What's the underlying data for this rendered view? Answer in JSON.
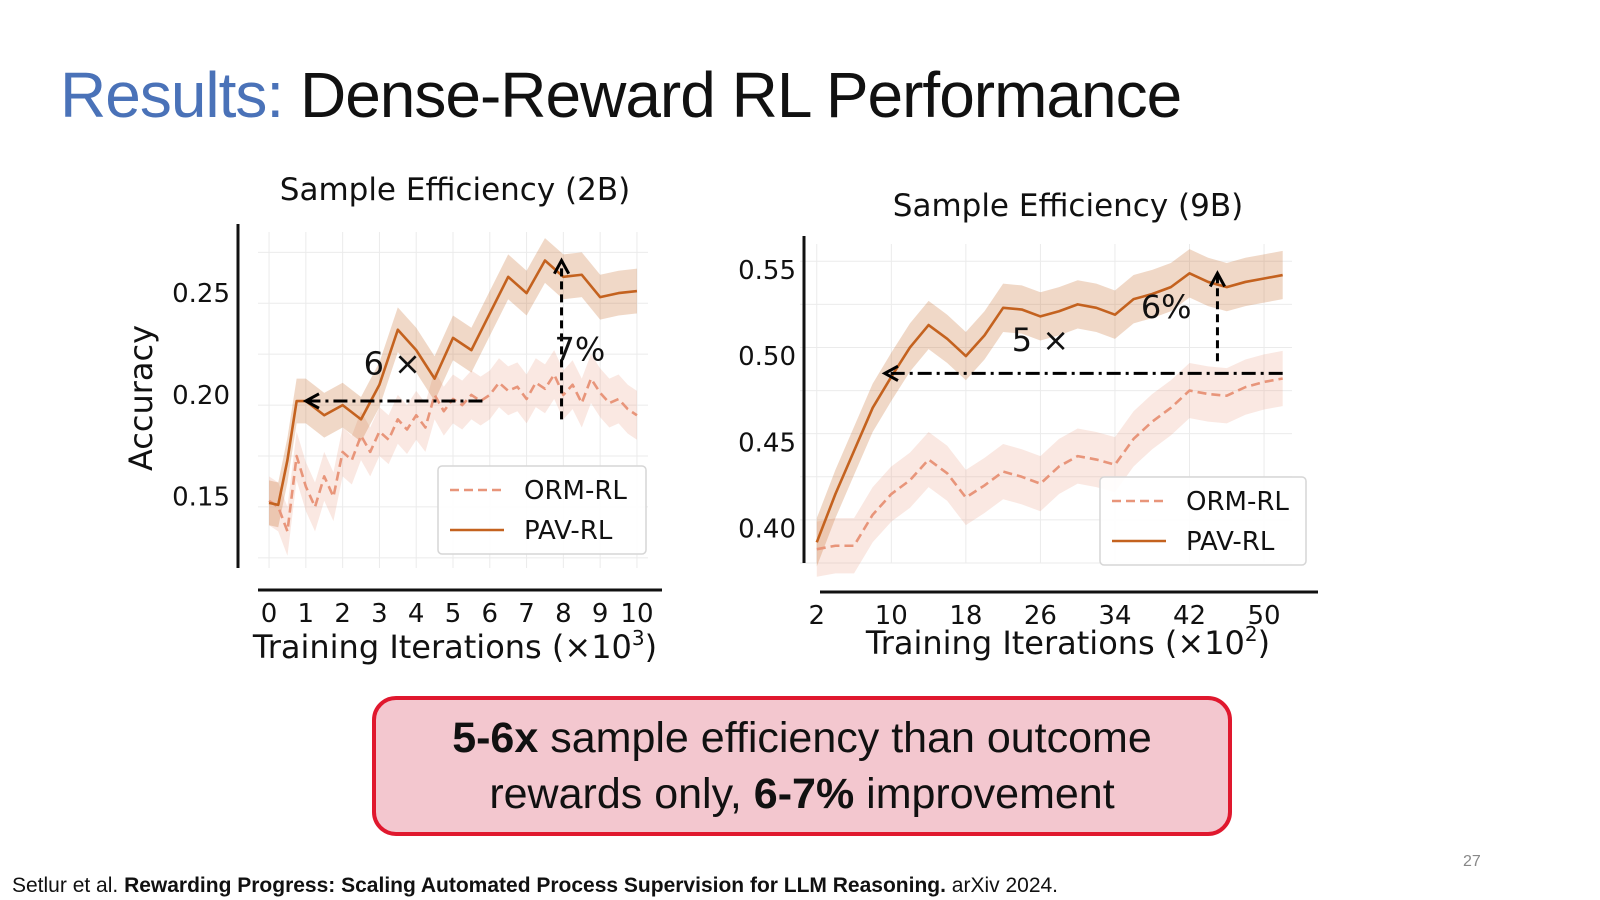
{
  "slide": {
    "title_accent": "Results:",
    "title_rest": " Dense-Reward RL Performance",
    "callout": {
      "line1_bold": "5-6x",
      "line1_rest": " sample efficiency than outcome",
      "line2_start": "rewards only, ",
      "line2_bold": "6-7%",
      "line2_end": " improvement"
    },
    "page_number": "27",
    "citation": {
      "authors": "Setlur et al. ",
      "paper_title": "Rewarding Progress: Scaling Automated Process Supervision for LLM Reasoning.",
      "venue": " arXiv 2024."
    },
    "colors": {
      "accent": "#4a72b8",
      "orm": "#e8957a",
      "pav": "#c4621f",
      "callout_bg": "#f3c7cf",
      "callout_border": "#e0182e"
    }
  },
  "chart_data": [
    {
      "type": "line",
      "title": "Sample Efficiency (2B)",
      "xlabel": "Training Iterations (×10",
      "xlabel_sup": "3",
      "xlabel_end": ")",
      "ylabel": "Accuracy",
      "xlim": [
        -0.3,
        10.3
      ],
      "ylim": [
        0.115,
        0.28
      ],
      "xticks": [
        0,
        1,
        2,
        3,
        4,
        5,
        6,
        7,
        8,
        9,
        10
      ],
      "xtick_labels": [
        "0",
        "1",
        "2",
        "3",
        "4",
        "5",
        "6",
        "7",
        "8",
        "9",
        "10"
      ],
      "yticks": [
        0.15,
        0.2,
        0.25
      ],
      "ytick_labels": [
        "0.15",
        "0.20",
        "0.25"
      ],
      "grid": true,
      "legend_position": "bottom-right",
      "series": [
        {
          "name": "ORM-RL",
          "style": "dashed",
          "x": [
            0,
            0.25,
            0.5,
            0.75,
            1,
            1.25,
            1.5,
            1.75,
            2,
            2.25,
            2.5,
            2.75,
            3,
            3.25,
            3.5,
            3.75,
            4,
            4.25,
            4.5,
            4.75,
            5,
            5.25,
            5.5,
            5.75,
            6,
            6.25,
            6.5,
            6.75,
            7,
            7.25,
            7.5,
            7.75,
            8,
            8.25,
            8.5,
            8.75,
            9,
            9.25,
            9.5,
            9.75,
            10
          ],
          "y": [
            0.148,
            0.145,
            0.133,
            0.17,
            0.155,
            0.145,
            0.16,
            0.15,
            0.172,
            0.168,
            0.18,
            0.172,
            0.182,
            0.178,
            0.188,
            0.183,
            0.19,
            0.184,
            0.2,
            0.192,
            0.198,
            0.195,
            0.2,
            0.197,
            0.2,
            0.206,
            0.202,
            0.204,
            0.198,
            0.206,
            0.203,
            0.21,
            0.2,
            0.205,
            0.196,
            0.208,
            0.201,
            0.196,
            0.198,
            0.193,
            0.19
          ],
          "band": 0.012
        },
        {
          "name": "PAV-RL",
          "style": "solid",
          "x": [
            0,
            0.25,
            0.5,
            0.75,
            1,
            1.5,
            2,
            2.5,
            3,
            3.5,
            4,
            4.5,
            5,
            5.5,
            6,
            6.5,
            7,
            7.5,
            8,
            8.5,
            9,
            9.5,
            10
          ],
          "y": [
            0.147,
            0.146,
            0.168,
            0.197,
            0.197,
            0.19,
            0.195,
            0.188,
            0.205,
            0.232,
            0.222,
            0.208,
            0.228,
            0.222,
            0.24,
            0.258,
            0.25,
            0.266,
            0.258,
            0.259,
            0.248,
            0.25,
            0.251
          ],
          "band": 0.011
        }
      ],
      "annotations": [
        {
          "type": "arrow",
          "style": "dashdot",
          "from": [
            5.8,
            0.197
          ],
          "to": [
            1.0,
            0.197
          ]
        },
        {
          "type": "arrow",
          "style": "dashed",
          "from": [
            7.95,
            0.188
          ],
          "to": [
            7.95,
            0.266
          ]
        },
        {
          "type": "text",
          "text": "6 ×",
          "at": [
            3.35,
            0.21
          ]
        },
        {
          "type": "text",
          "text": "7%",
          "at": [
            8.45,
            0.217
          ]
        }
      ]
    },
    {
      "type": "line",
      "title": "Sample Efficiency (9B)",
      "xlabel": "Training Iterations (×10",
      "xlabel_sup": "2",
      "xlabel_end": ")",
      "ylabel": "",
      "xlim": [
        0.2,
        53
      ],
      "ylim": [
        0.38,
        0.565
      ],
      "xticks": [
        2,
        10,
        18,
        26,
        34,
        42,
        50
      ],
      "xtick_labels": [
        "2",
        "10",
        "18",
        "26",
        "34",
        "42",
        "50"
      ],
      "yticks": [
        0.4,
        0.45,
        0.5,
        0.55
      ],
      "ytick_labels": [
        "0.40",
        "0.45",
        "0.50",
        "0.55"
      ],
      "grid": true,
      "legend_position": "bottom-right",
      "series": [
        {
          "name": "ORM-RL",
          "style": "dashed",
          "x": [
            2,
            4,
            6,
            8,
            10,
            12,
            14,
            16,
            18,
            20,
            22,
            24,
            26,
            28,
            30,
            32,
            34,
            36,
            38,
            40,
            42,
            44,
            46,
            48,
            50,
            52
          ],
          "y": [
            0.388,
            0.39,
            0.39,
            0.408,
            0.42,
            0.428,
            0.44,
            0.432,
            0.418,
            0.425,
            0.433,
            0.43,
            0.426,
            0.436,
            0.442,
            0.44,
            0.437,
            0.452,
            0.462,
            0.47,
            0.48,
            0.478,
            0.477,
            0.482,
            0.485,
            0.487
          ],
          "band": 0.016
        },
        {
          "name": "PAV-RL",
          "style": "solid",
          "x": [
            2,
            4,
            6,
            8,
            10,
            12,
            14,
            16,
            18,
            20,
            22,
            24,
            26,
            28,
            30,
            32,
            34,
            36,
            38,
            40,
            42,
            44,
            46,
            48,
            50,
            52
          ],
          "y": [
            0.392,
            0.42,
            0.445,
            0.47,
            0.488,
            0.505,
            0.518,
            0.51,
            0.5,
            0.512,
            0.528,
            0.527,
            0.523,
            0.526,
            0.53,
            0.528,
            0.524,
            0.533,
            0.536,
            0.54,
            0.548,
            0.543,
            0.54,
            0.543,
            0.545,
            0.547
          ],
          "band": 0.014
        }
      ],
      "annotations": [
        {
          "type": "arrow",
          "style": "dashdot",
          "from": [
            52,
            0.49
          ],
          "to": [
            9.3,
            0.49
          ]
        },
        {
          "type": "arrow",
          "style": "dashed",
          "from": [
            45.0,
            0.497
          ],
          "to": [
            45.0,
            0.548
          ]
        },
        {
          "type": "text",
          "text": "5 ×",
          "at": [
            26,
            0.503
          ]
        },
        {
          "type": "text",
          "text": "6%",
          "at": [
            39.5,
            0.522
          ]
        }
      ]
    }
  ]
}
